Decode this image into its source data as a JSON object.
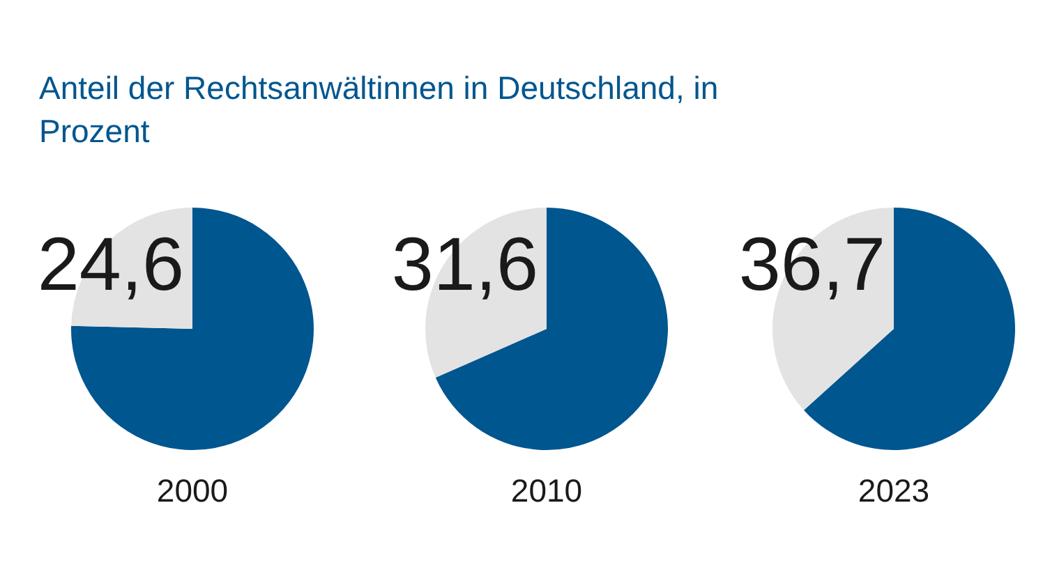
{
  "chart_data": [
    {
      "type": "pie",
      "title": "Anteil der Rechtsanwältinnen in Deutschland, in Prozent",
      "xlabel": "2000",
      "categories": [
        null,
        null
      ],
      "values": [
        75.4,
        24.6
      ],
      "colors": [
        "#00568f",
        "#e3e3e3"
      ],
      "value_labels": [
        null,
        "24,6"
      ],
      "legend": false
    },
    {
      "type": "pie",
      "xlabel": "2010",
      "categories": [
        null,
        null
      ],
      "values": [
        68.4,
        31.6
      ],
      "colors": [
        "#00568f",
        "#e3e3e3"
      ],
      "value_labels": [
        null,
        "31,6"
      ],
      "legend": false
    },
    {
      "type": "pie",
      "xlabel": "2023",
      "categories": [
        null,
        null
      ],
      "values": [
        63.3,
        36.7
      ],
      "colors": [
        "#00568f",
        "#e3e3e3"
      ],
      "value_labels": [
        null,
        "36,7"
      ],
      "legend": false
    }
  ]
}
